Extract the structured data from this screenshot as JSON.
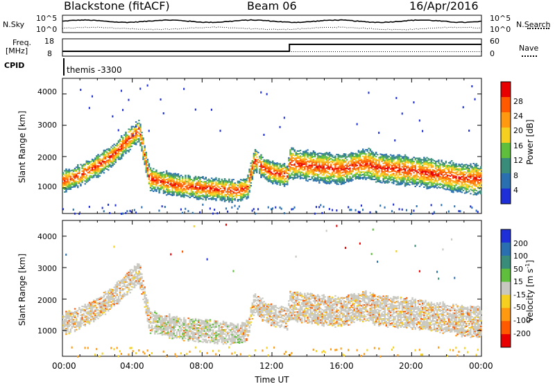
{
  "header": {
    "station": "Blackstone (fitACF)",
    "beam": "Beam 06",
    "date": "16/Apr/2016"
  },
  "top_panels": {
    "nsky_label": "N.Sky",
    "nsearch_label": "N.Search",
    "nsky_ticks": [
      "10^5",
      "10^0"
    ],
    "nsearch_ticks": [
      "10^5",
      "10^0"
    ],
    "freq_label_1": "Freq.",
    "freq_label_2": "[MHz]",
    "freq_ticks": [
      "18",
      "8"
    ],
    "nave_label": "Nave",
    "nave_ticks": [
      "60",
      "0"
    ],
    "cpid_label": "CPID",
    "cpid_text": "themis -3300"
  },
  "colorbars": {
    "power": {
      "label": "Power [dB]",
      "ticks": [
        "28",
        "24",
        "20",
        "16",
        "12",
        "8",
        "4"
      ],
      "colors": [
        "#e80000",
        "#ff5a00",
        "#ff9a10",
        "#f5d020",
        "#5fbf3c",
        "#3a8c7a",
        "#2a6fb0",
        "#1f2fd8"
      ]
    },
    "velocity": {
      "label": "Velocity [m s",
      "label_sup": "-1",
      "label_end": "]",
      "ticks": [
        "200",
        "100",
        "50",
        "15",
        "-15",
        "-50",
        "-100",
        "-200"
      ],
      "colors": [
        "#1f2fd8",
        "#2a6fb0",
        "#3a8c7a",
        "#5fbf3c",
        "#c8c8c0",
        "#f5d020",
        "#ff9a10",
        "#ff5a00",
        "#e80000"
      ]
    }
  },
  "chart_data": [
    {
      "type": "heatmap",
      "title": "Power",
      "ylabel": "Slant Range [km]",
      "ylim": [
        180,
        4500
      ],
      "yticks": [
        "1000",
        "2000",
        "3000",
        "4000"
      ],
      "xlim": [
        "00:00",
        "24:00"
      ],
      "xlabel": "",
      "band_center": [
        [
          0,
          1200
        ],
        [
          1,
          1400
        ],
        [
          2,
          1700
        ],
        [
          3,
          2100
        ],
        [
          4,
          2650
        ],
        [
          4.4,
          2850
        ],
        [
          5,
          1300
        ],
        [
          6,
          1150
        ],
        [
          7,
          1050
        ],
        [
          8,
          1000
        ],
        [
          9,
          950
        ],
        [
          10,
          900
        ],
        [
          10.6,
          1000
        ],
        [
          11,
          1900
        ],
        [
          11.5,
          1650
        ],
        [
          12,
          1500
        ],
        [
          12.9,
          1400
        ],
        [
          13,
          1800
        ],
        [
          14,
          1720
        ],
        [
          15,
          1650
        ],
        [
          16,
          1600
        ],
        [
          17,
          1750
        ],
        [
          17.5,
          1780
        ],
        [
          18,
          1650
        ],
        [
          20,
          1550
        ],
        [
          22,
          1400
        ],
        [
          23,
          1300
        ],
        [
          24,
          1280
        ]
      ]
    },
    {
      "type": "heatmap",
      "title": "Velocity",
      "ylabel": "Slant Range [km]",
      "ylim": [
        180,
        4500
      ],
      "yticks": [
        "1000",
        "2000",
        "3000",
        "4000"
      ],
      "xlim": [
        "00:00",
        "24:00"
      ],
      "xlabel": "Time UT",
      "xticks": [
        "00:00",
        "04:00",
        "08:00",
        "12:00",
        "16:00",
        "20:00",
        "00:00"
      ],
      "band_center": [
        [
          0,
          1200
        ],
        [
          1,
          1400
        ],
        [
          2,
          1700
        ],
        [
          3,
          2100
        ],
        [
          4,
          2650
        ],
        [
          4.4,
          2850
        ],
        [
          5,
          1300
        ],
        [
          6,
          1150
        ],
        [
          7,
          1050
        ],
        [
          8,
          1000
        ],
        [
          9,
          950
        ],
        [
          10,
          900
        ],
        [
          10.6,
          1000
        ],
        [
          11,
          1900
        ],
        [
          11.5,
          1650
        ],
        [
          12,
          1500
        ],
        [
          12.9,
          1400
        ],
        [
          13,
          1800
        ],
        [
          14,
          1720
        ],
        [
          15,
          1650
        ],
        [
          16,
          1600
        ],
        [
          17,
          1750
        ],
        [
          17.5,
          1780
        ],
        [
          18,
          1650
        ],
        [
          20,
          1550
        ],
        [
          22,
          1400
        ],
        [
          23,
          1300
        ],
        [
          24,
          1280
        ]
      ]
    }
  ]
}
